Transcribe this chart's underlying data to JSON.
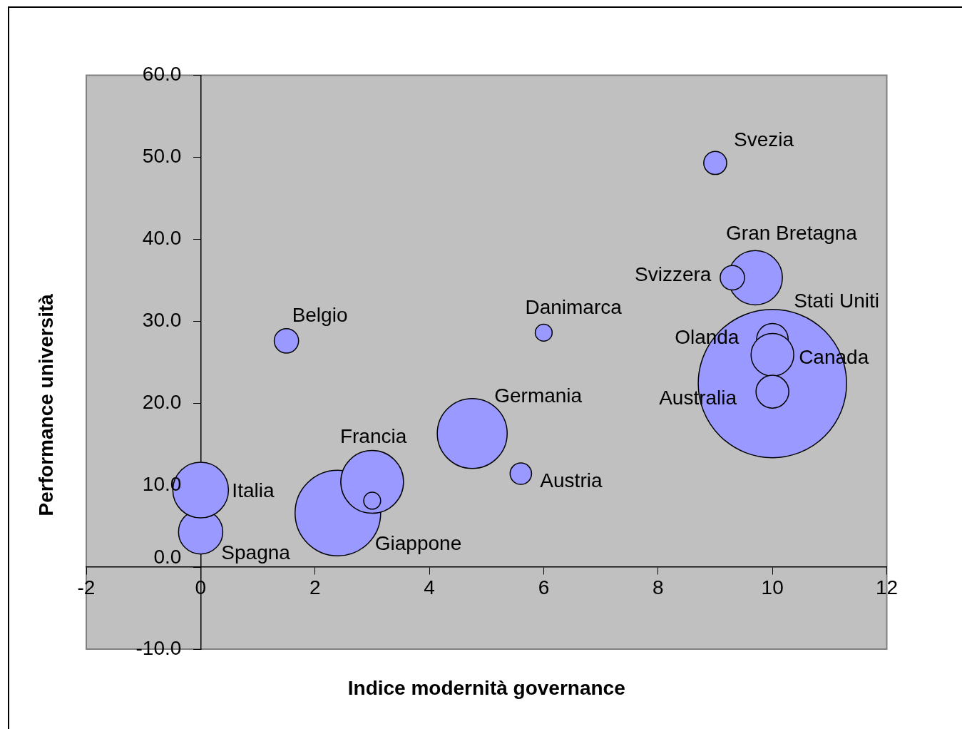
{
  "chart_data": {
    "type": "bubble",
    "xlabel": "Indice modernità governance",
    "ylabel": "Performance università",
    "xlim": [
      -2,
      12
    ],
    "xticks": [
      -2,
      0,
      2,
      4,
      6,
      8,
      10,
      12
    ],
    "ylim": [
      -10,
      60
    ],
    "yticks": [
      {
        "value": -10,
        "label": "-10.0"
      },
      {
        "value": 0,
        "label": "0.0"
      },
      {
        "value": 10,
        "label": "10.0"
      },
      {
        "value": 20,
        "label": "20.0"
      },
      {
        "value": 30,
        "label": "30.0"
      },
      {
        "value": 40,
        "label": "40.0"
      },
      {
        "value": 50,
        "label": "50.0"
      },
      {
        "value": 60,
        "label": "60.0"
      }
    ],
    "grid": false,
    "legend": false,
    "series": [
      {
        "color": "#9999ff",
        "x": [
          9,
          9.7,
          9.3,
          6,
          1.5,
          10,
          10,
          10,
          10,
          4.75,
          5.6,
          2.4,
          3,
          3,
          0,
          0
        ],
        "values": [
          49.3,
          35.3,
          35.3,
          28.6,
          27.6,
          22.4,
          27.8,
          25.9,
          21.4,
          16.3,
          11.4,
          6.6,
          10.4,
          8.1,
          4.3,
          9.4
        ],
        "sizes": [
          0.024,
          0.134,
          0.027,
          0.013,
          0.027,
          1,
          0.045,
          0.083,
          0.049,
          0.222,
          0.021,
          0.333,
          0.179,
          0.013,
          0.089,
          0.141
        ]
      }
    ],
    "annotations": [
      {
        "text": "Svezia",
        "x": 9,
        "y": 49.3
      },
      {
        "text": "Gran Bretagna",
        "x": 9.7,
        "y": 35.3
      },
      {
        "text": "Svizzera",
        "x": 9.3,
        "y": 35.3
      },
      {
        "text": "Danimarca",
        "x": 6,
        "y": 28.6
      },
      {
        "text": "Belgio",
        "x": 1.5,
        "y": 27.6
      },
      "Stati Uniti",
      {
        "text": "Olanda",
        "x": 10,
        "y": 27.8
      },
      {
        "text": "Canada",
        "x": 10,
        "y": 25.9
      },
      {
        "text": "Australia",
        "x": 10,
        "y": 21.4
      },
      {
        "text": "Germania",
        "x": 4.75,
        "y": 16.3
      },
      {
        "text": "Austria",
        "x": 5.6,
        "y": 11.4
      },
      {
        "text": "Francia",
        "x": 3,
        "y": 10.4
      },
      {
        "text": "Giappone",
        "x": 2.4,
        "y": 6.6
      },
      {
        "text": "Italia",
        "x": 0,
        "y": 9.4
      },
      {
        "text": "Spagna",
        "x": 0,
        "y": 4.3
      }
    ]
  }
}
